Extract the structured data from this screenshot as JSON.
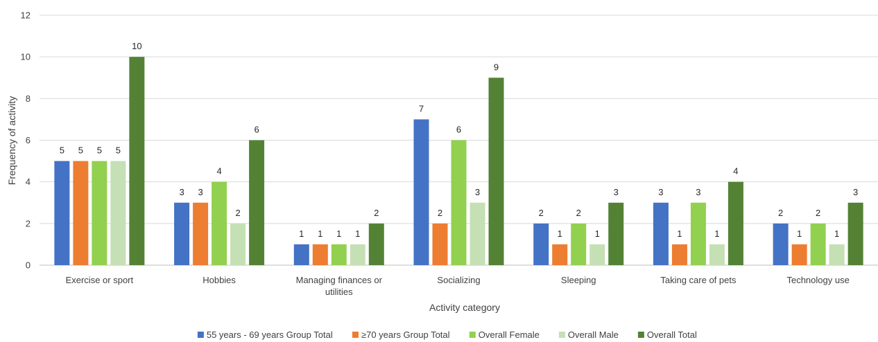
{
  "chart_data": {
    "type": "bar",
    "title": "",
    "xlabel": "Activity category",
    "ylabel": "Frequency of activity",
    "ylim": [
      0,
      12
    ],
    "yticks": [
      0,
      2,
      4,
      6,
      8,
      10,
      12
    ],
    "grid": true,
    "legend_position": "bottom",
    "categories": [
      [
        "Exercise or sport"
      ],
      [
        "Hobbies"
      ],
      [
        "Managing finances or",
        "utilities"
      ],
      [
        "Socializing"
      ],
      [
        "Sleeping"
      ],
      [
        "Taking care of pets"
      ],
      [
        "Technology use"
      ]
    ],
    "series": [
      {
        "name": "55 years - 69 years Group Total",
        "color": "#4472C4",
        "values": [
          5,
          3,
          1,
          7,
          2,
          3,
          2
        ]
      },
      {
        "name": "≥70 years Group Total",
        "color": "#ED7D31",
        "values": [
          5,
          3,
          1,
          2,
          1,
          1,
          1
        ]
      },
      {
        "name": "Overall Female",
        "color": "#92D050",
        "values": [
          5,
          4,
          1,
          6,
          2,
          3,
          2
        ]
      },
      {
        "name": "Overall Male",
        "color": "#C5E0B4",
        "values": [
          5,
          2,
          1,
          3,
          1,
          1,
          1
        ]
      },
      {
        "name": "Overall Total",
        "color": "#548235",
        "values": [
          10,
          6,
          2,
          9,
          3,
          4,
          3
        ]
      }
    ]
  }
}
